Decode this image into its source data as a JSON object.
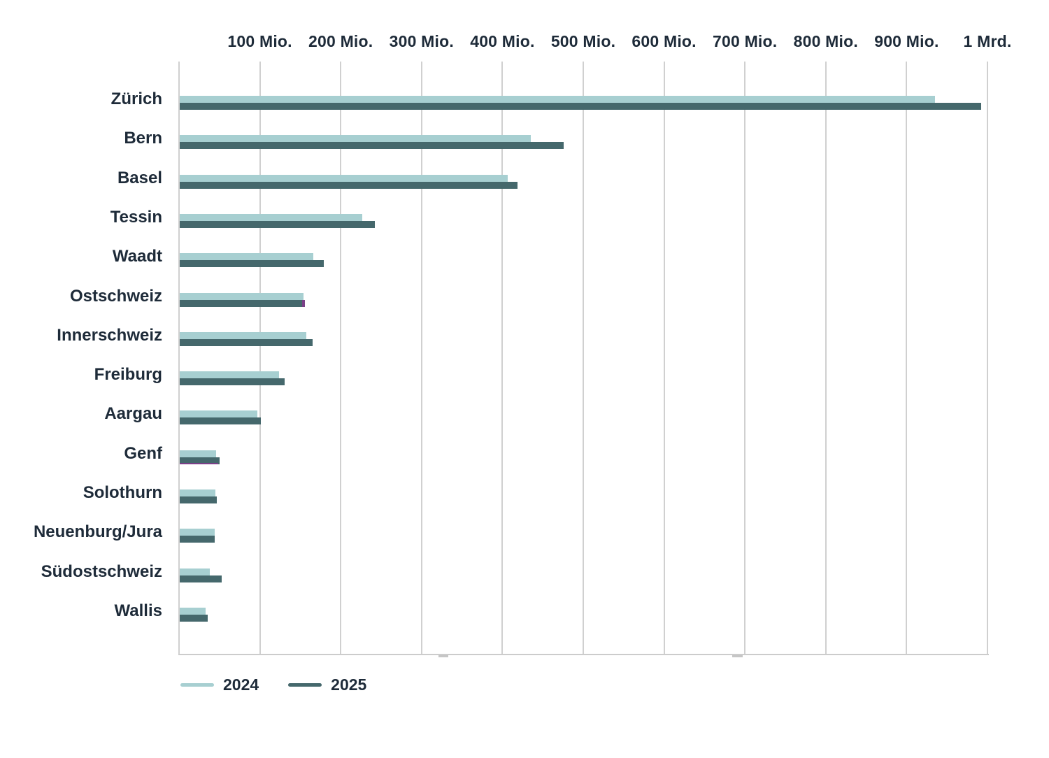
{
  "chart_data": {
    "type": "bar",
    "orientation": "horizontal",
    "title": "",
    "x_axis": {
      "position": "top",
      "min": 0,
      "max": 1000,
      "gridline_step": 100,
      "ticks": [
        {
          "value": 100,
          "label": "100 Mio."
        },
        {
          "value": 200,
          "label": "200 Mio."
        },
        {
          "value": 300,
          "label": "300 Mio."
        },
        {
          "value": 400,
          "label": "400 Mio."
        },
        {
          "value": 500,
          "label": "500 Mio."
        },
        {
          "value": 600,
          "label": "600 Mio."
        },
        {
          "value": 700,
          "label": "700 Mio."
        },
        {
          "value": 800,
          "label": "800 Mio."
        },
        {
          "value": 900,
          "label": "900 Mio."
        },
        {
          "value": 1000,
          "label": "1 Mrd."
        }
      ]
    },
    "categories": [
      "Zürich",
      "Bern",
      "Basel",
      "Tessin",
      "Waadt",
      "Ostschweiz",
      "Innerschweiz",
      "Freiburg",
      "Aargau",
      "Genf",
      "Solothurn",
      "Neuenburg/Jura",
      "Südostschweiz",
      "Wallis"
    ],
    "series": [
      {
        "name": "2024",
        "color": "#a7cfd1",
        "values": [
          934,
          434,
          406,
          226,
          165,
          153,
          157,
          123,
          96,
          45,
          44,
          43,
          37,
          32
        ]
      },
      {
        "name": "2025",
        "color": "#45686c",
        "values": [
          991,
          475,
          418,
          241,
          178,
          152,
          164,
          130,
          100,
          49,
          46,
          43,
          52,
          35
        ]
      }
    ],
    "legend": {
      "position": "bottom-left",
      "items": [
        {
          "label": "2024",
          "color": "#a7cfd1"
        },
        {
          "label": "2025",
          "color": "#45686c"
        }
      ]
    },
    "annotations": [
      {
        "kind": "segment",
        "category": "Ostschweiz",
        "series": "2025",
        "from": 152,
        "to": 156,
        "color": "#7b4088"
      },
      {
        "kind": "underline",
        "category": "Genf",
        "series": "2025",
        "from": 0,
        "to": 48,
        "color": "#7b4088"
      }
    ],
    "axis_marks": [
      {
        "from": 321,
        "to": 333
      },
      {
        "from": 684,
        "to": 697
      }
    ],
    "grid": true,
    "colors": {
      "text": "#1e2b39",
      "gridline": "#d0d0d0",
      "axis_line": "#cccccc",
      "highlight": "#7b4088"
    }
  }
}
